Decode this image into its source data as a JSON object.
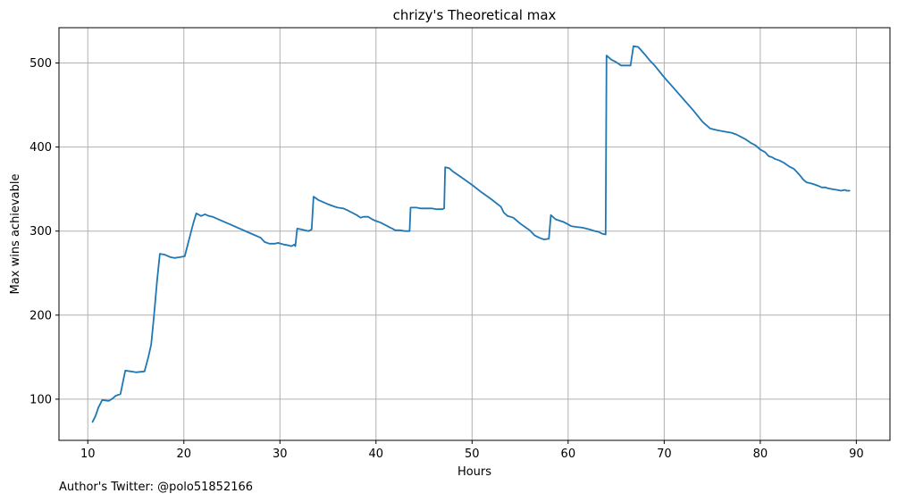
{
  "footer": {
    "text": "Author's Twitter: @polo51852166"
  },
  "chart_data": {
    "type": "line",
    "title": "chrizy's Theoretical max",
    "xlabel": "Hours",
    "ylabel": "Max wins achievable",
    "xlim": [
      7,
      93.5
    ],
    "ylim": [
      51,
      542
    ],
    "xticks": [
      10,
      20,
      30,
      40,
      50,
      60,
      70,
      80,
      90
    ],
    "yticks": [
      100,
      200,
      300,
      400,
      500
    ],
    "grid": true,
    "colors": {
      "line": "#1f77b4",
      "grid": "#b0b0b0",
      "axis": "#000000"
    },
    "series": [
      {
        "points": [
          [
            10.5,
            73
          ],
          [
            10.8,
            80
          ],
          [
            11.1,
            90
          ],
          [
            11.5,
            99
          ],
          [
            12.2,
            98
          ],
          [
            12.6,
            101
          ],
          [
            12.9,
            104
          ],
          [
            13.4,
            106
          ],
          [
            13.9,
            134
          ],
          [
            14.5,
            133
          ],
          [
            15.0,
            132
          ],
          [
            15.9,
            133
          ],
          [
            16.3,
            150
          ],
          [
            16.6,
            165
          ],
          [
            16.9,
            200
          ],
          [
            17.2,
            240
          ],
          [
            17.5,
            273
          ],
          [
            18.0,
            272
          ],
          [
            18.6,
            269
          ],
          [
            19.0,
            268
          ],
          [
            19.6,
            269
          ],
          [
            20.1,
            270
          ],
          [
            20.5,
            288
          ],
          [
            21.0,
            310
          ],
          [
            21.3,
            321
          ],
          [
            21.8,
            318
          ],
          [
            22.2,
            320
          ],
          [
            22.6,
            318
          ],
          [
            23.0,
            317
          ],
          [
            24.0,
            312
          ],
          [
            25.0,
            307
          ],
          [
            26.0,
            302
          ],
          [
            27.0,
            297
          ],
          [
            28.0,
            292
          ],
          [
            28.4,
            287
          ],
          [
            28.9,
            285
          ],
          [
            29.5,
            285
          ],
          [
            29.8,
            286
          ],
          [
            30.4,
            284
          ],
          [
            30.9,
            283
          ],
          [
            31.2,
            282
          ],
          [
            31.5,
            284
          ],
          [
            31.6,
            282
          ],
          [
            31.8,
            303
          ],
          [
            32.2,
            302
          ],
          [
            33.0,
            300
          ],
          [
            33.3,
            302
          ],
          [
            33.5,
            341
          ],
          [
            34.0,
            337
          ],
          [
            35.0,
            332
          ],
          [
            35.7,
            329
          ],
          [
            36.0,
            328
          ],
          [
            36.6,
            327
          ],
          [
            37.0,
            325
          ],
          [
            37.5,
            322
          ],
          [
            38.0,
            319
          ],
          [
            38.4,
            316
          ],
          [
            38.7,
            317
          ],
          [
            39.2,
            317
          ],
          [
            39.6,
            314
          ],
          [
            40.0,
            312
          ],
          [
            40.5,
            310
          ],
          [
            41.0,
            307
          ],
          [
            41.5,
            304
          ],
          [
            41.7,
            303
          ],
          [
            42.0,
            301
          ],
          [
            42.5,
            301
          ],
          [
            43.0,
            300
          ],
          [
            43.5,
            300
          ],
          [
            43.6,
            328
          ],
          [
            44.2,
            328
          ],
          [
            44.6,
            327
          ],
          [
            45.0,
            327
          ],
          [
            45.8,
            327
          ],
          [
            46.3,
            326
          ],
          [
            46.9,
            326
          ],
          [
            47.1,
            327
          ],
          [
            47.2,
            376
          ],
          [
            47.6,
            375
          ],
          [
            48.0,
            371
          ],
          [
            49.0,
            363
          ],
          [
            50.0,
            355
          ],
          [
            51.0,
            346
          ],
          [
            52.0,
            338
          ],
          [
            53.0,
            329
          ],
          [
            53.3,
            322
          ],
          [
            53.7,
            318
          ],
          [
            54.0,
            317
          ],
          [
            54.3,
            316
          ],
          [
            55.0,
            309
          ],
          [
            56.0,
            301
          ],
          [
            56.5,
            295
          ],
          [
            57.0,
            292
          ],
          [
            57.5,
            290
          ],
          [
            58.0,
            291
          ],
          [
            58.2,
            319
          ],
          [
            58.7,
            314
          ],
          [
            59.2,
            312
          ],
          [
            59.5,
            311
          ],
          [
            60.0,
            308
          ],
          [
            60.3,
            306
          ],
          [
            60.8,
            305
          ],
          [
            61.5,
            304
          ],
          [
            62.2,
            302
          ],
          [
            62.8,
            300
          ],
          [
            63.2,
            299
          ],
          [
            63.5,
            297
          ],
          [
            63.9,
            296
          ],
          [
            64.0,
            509
          ],
          [
            64.5,
            504
          ],
          [
            65.0,
            501
          ],
          [
            65.5,
            497
          ],
          [
            66.0,
            497
          ],
          [
            66.5,
            497
          ],
          [
            66.8,
            520
          ],
          [
            67.3,
            519
          ],
          [
            68.0,
            510
          ],
          [
            68.5,
            503
          ],
          [
            69.0,
            497
          ],
          [
            70.0,
            483
          ],
          [
            71.0,
            470
          ],
          [
            72.0,
            457
          ],
          [
            73.0,
            444
          ],
          [
            74.0,
            430
          ],
          [
            74.8,
            422
          ],
          [
            75.5,
            420
          ],
          [
            76.0,
            419
          ],
          [
            76.5,
            418
          ],
          [
            77.0,
            417
          ],
          [
            77.5,
            415
          ],
          [
            78.0,
            412
          ],
          [
            78.5,
            409
          ],
          [
            79.0,
            405
          ],
          [
            79.5,
            402
          ],
          [
            80.0,
            397
          ],
          [
            80.5,
            394
          ],
          [
            80.9,
            389
          ],
          [
            81.2,
            388
          ],
          [
            81.5,
            386
          ],
          [
            82.0,
            384
          ],
          [
            82.5,
            381
          ],
          [
            83.0,
            377
          ],
          [
            83.5,
            374
          ],
          [
            84.0,
            368
          ],
          [
            84.5,
            361
          ],
          [
            84.8,
            358
          ],
          [
            85.2,
            357
          ],
          [
            85.5,
            356
          ],
          [
            86.0,
            354
          ],
          [
            86.4,
            352
          ],
          [
            86.8,
            352
          ],
          [
            87.0,
            351
          ],
          [
            87.5,
            350
          ],
          [
            88.0,
            349
          ],
          [
            88.4,
            348
          ],
          [
            88.8,
            349
          ],
          [
            89.0,
            348
          ],
          [
            89.3,
            348
          ]
        ]
      }
    ]
  }
}
